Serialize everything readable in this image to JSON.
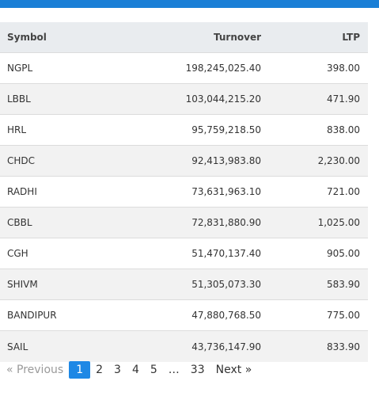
{
  "table": {
    "headers": [
      "Symbol",
      "Turnover",
      "LTP"
    ],
    "rows": [
      {
        "symbol": "NGPL",
        "turnover": "198,245,025.40",
        "ltp": "398.00"
      },
      {
        "symbol": "LBBL",
        "turnover": "103,044,215.20",
        "ltp": "471.90"
      },
      {
        "symbol": "HRL",
        "turnover": "95,759,218.50",
        "ltp": "838.00"
      },
      {
        "symbol": "CHDC",
        "turnover": "92,413,983.80",
        "ltp": "2,230.00"
      },
      {
        "symbol": "RADHI",
        "turnover": "73,631,963.10",
        "ltp": "721.00"
      },
      {
        "symbol": "CBBL",
        "turnover": "72,831,880.90",
        "ltp": "1,025.00"
      },
      {
        "symbol": "CGH",
        "turnover": "51,470,137.40",
        "ltp": "905.00"
      },
      {
        "symbol": "SHIVM",
        "turnover": "51,305,073.30",
        "ltp": "583.90"
      },
      {
        "symbol": "BANDIPUR",
        "turnover": "47,880,768.50",
        "ltp": "775.00"
      },
      {
        "symbol": "SAIL",
        "turnover": "43,736,147.90",
        "ltp": "833.90"
      }
    ]
  },
  "pagination": {
    "previous_label": "« Previous",
    "next_label": "Next »",
    "pages": [
      "1",
      "2",
      "3",
      "4",
      "5",
      "…",
      "33"
    ],
    "current_page": "1"
  },
  "colors": {
    "accent": "#1a7fd6",
    "active_page": "#1e88e5",
    "header_bg": "#e9ecef",
    "stripe_bg": "#f2f2f2"
  }
}
